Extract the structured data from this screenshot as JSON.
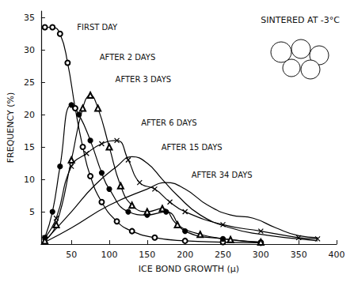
{
  "chart_data": {
    "type": "line",
    "annotation": "SINTERED AT -3°C",
    "x_label": "ICE BOND GROWTH (μ)",
    "y_label": "FREQUENCY (%)",
    "xlim": [
      10,
      400
    ],
    "xticks": [
      50,
      100,
      150,
      200,
      250,
      300,
      350,
      400
    ],
    "ylim": [
      0,
      36
    ],
    "yticks": [
      5,
      10,
      15,
      20,
      25,
      30,
      35
    ],
    "grid": false,
    "series": [
      {
        "name": "FIRST DAY",
        "color": "#000000",
        "marker": "circle_open",
        "line_style": "solid",
        "x": [
          15,
          25,
          35,
          45,
          55,
          65,
          75,
          90,
          110,
          130,
          160,
          200,
          250,
          300
        ],
        "values": [
          33.5,
          33.5,
          32.5,
          28,
          21,
          15,
          10.5,
          6.5,
          3.5,
          2,
          1,
          0.5,
          0.3,
          0.2
        ]
      },
      {
        "name": "AFTER 2 DAYS",
        "color": "#000000",
        "marker": "circle_filled",
        "line_style": "solid",
        "x": [
          15,
          25,
          35,
          50,
          60,
          75,
          90,
          100,
          125,
          150,
          175,
          200,
          250,
          300
        ],
        "values": [
          1,
          5,
          12,
          21.5,
          20,
          16,
          11,
          8.5,
          5,
          4.5,
          5,
          2,
          0.8,
          0.3
        ]
      },
      {
        "name": "AFTER 3 DAYS",
        "color": "#000000",
        "marker": "triangle_open",
        "line_style": "solid",
        "x": [
          15,
          30,
          50,
          65,
          75,
          85,
          100,
          115,
          130,
          150,
          170,
          190,
          220,
          260,
          300
        ],
        "values": [
          0.5,
          3,
          13,
          21,
          23,
          21,
          15,
          9,
          6,
          5,
          5.5,
          3,
          1.5,
          0.7,
          0.3
        ]
      },
      {
        "name": "AFTER 6 DAYS",
        "color": "#000000",
        "marker": "x",
        "line_style": "solid",
        "x": [
          15,
          30,
          50,
          70,
          90,
          110,
          125,
          140,
          160,
          180,
          200,
          250,
          300,
          350,
          375
        ],
        "values": [
          1,
          4,
          12,
          14,
          15.5,
          16,
          13,
          9.5,
          8.5,
          6.5,
          5,
          3,
          2,
          1,
          0.8
        ]
      },
      {
        "name": "AFTER 15 DAYS",
        "color": "#000000",
        "marker": "none",
        "line_style": "solid",
        "x": [
          15,
          50,
          80,
          110,
          130,
          150,
          170,
          190,
          220,
          260,
          300,
          350,
          375
        ],
        "values": [
          0.5,
          5,
          9,
          12,
          13.5,
          12.5,
          10,
          7.5,
          4.5,
          2.5,
          1.5,
          0.8,
          0.5
        ]
      },
      {
        "name": "AFTER 34 DAYS",
        "color": "#000000",
        "marker": "none",
        "line_style": "solid",
        "x": [
          15,
          50,
          100,
          150,
          175,
          200,
          230,
          260,
          290,
          320,
          350,
          375
        ],
        "values": [
          0.3,
          2.5,
          6,
          8.5,
          9.5,
          8.5,
          6,
          4.5,
          4,
          2.5,
          1.3,
          1
        ]
      }
    ]
  }
}
